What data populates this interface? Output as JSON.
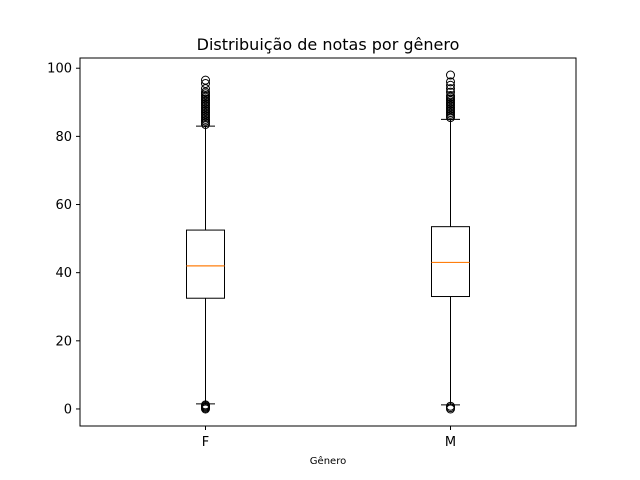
{
  "chart_data": {
    "type": "box",
    "title": "Distribuição de notas por gênero",
    "xlabel": "Gênero",
    "ylabel": "",
    "ylim": [
      -5,
      103
    ],
    "yticks": [
      0,
      20,
      40,
      60,
      80,
      100
    ],
    "categories": [
      "F",
      "M"
    ],
    "grid": false,
    "colors": {
      "box": "#000000",
      "median": "#ff7f0e",
      "flier": "#000000"
    },
    "boxes": [
      {
        "category": "F",
        "whisker_low": 1.5,
        "q1": 32.5,
        "median": 42,
        "q3": 52.5,
        "whisker_high": 83,
        "fliers_low": [
          0,
          0.3,
          0.6,
          0.9,
          1.2
        ],
        "fliers_high": [
          83.5,
          84,
          84.5,
          85,
          85.5,
          86,
          86.5,
          87,
          87.5,
          88,
          88.5,
          89,
          89.5,
          90,
          90.5,
          91,
          91.5,
          92,
          92.5,
          93,
          94,
          95.5,
          96.5
        ]
      },
      {
        "category": "M",
        "whisker_low": 1.2,
        "q1": 33,
        "median": 43,
        "q3": 53.5,
        "whisker_high": 85,
        "fliers_low": [
          0,
          0.4,
          0.8
        ],
        "fliers_high": [
          85.5,
          86,
          86.5,
          87,
          87.5,
          88,
          88.5,
          89,
          89.5,
          90,
          90.5,
          91,
          91.5,
          92,
          93,
          94,
          95,
          96,
          98
        ]
      }
    ]
  }
}
